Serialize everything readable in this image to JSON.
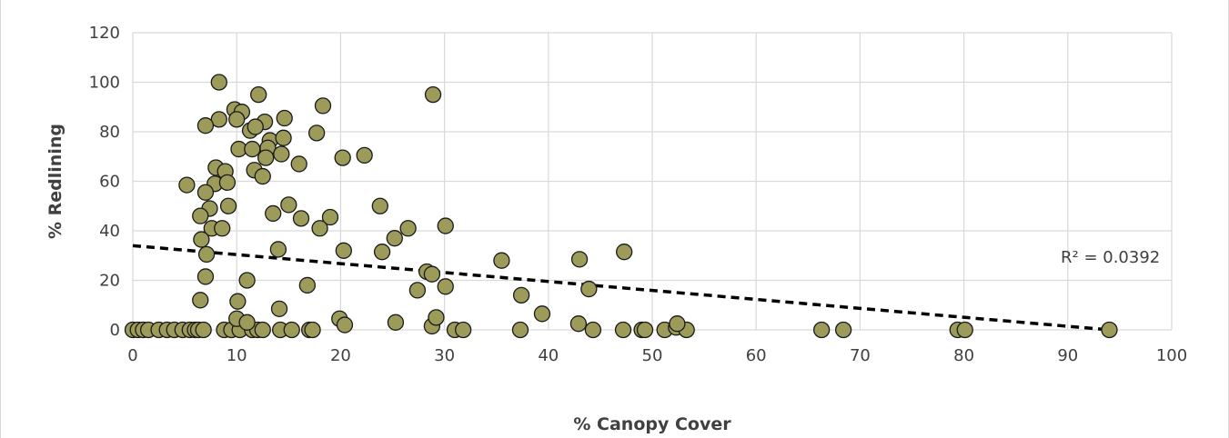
{
  "chart_data": {
    "type": "scatter",
    "title": "",
    "xlabel": "% Canopy Cover",
    "ylabel": "% Redlining",
    "xlim": [
      0,
      100
    ],
    "ylim": [
      0,
      120
    ],
    "xticks": [
      "0",
      "10",
      "20",
      "30",
      "40",
      "50",
      "60",
      "70",
      "80",
      "90",
      "100"
    ],
    "yticks": [
      "0",
      "20",
      "40",
      "60",
      "80",
      "100",
      "120"
    ],
    "grid": true,
    "marker_color": "#9c9b5a",
    "marker_edge": "#1a1a1a",
    "trendline": {
      "style": "dashed",
      "color": "#000000",
      "x": [
        0,
        94
      ],
      "y": [
        34,
        0
      ]
    },
    "r_squared_label": "R² = 0.0392",
    "points": [
      [
        0,
        0
      ],
      [
        0.5,
        0
      ],
      [
        1,
        0
      ],
      [
        1.5,
        0
      ],
      [
        2.5,
        0
      ],
      [
        3.3,
        0
      ],
      [
        4,
        0
      ],
      [
        4.8,
        0
      ],
      [
        5.5,
        0
      ],
      [
        6,
        0
      ],
      [
        6.3,
        0
      ],
      [
        6.8,
        0
      ],
      [
        8.8,
        0
      ],
      [
        9.5,
        0
      ],
      [
        10.3,
        0
      ],
      [
        11.5,
        0
      ],
      [
        12,
        0
      ],
      [
        12.5,
        0
      ],
      [
        14.2,
        0
      ],
      [
        15.3,
        0
      ],
      [
        17,
        0
      ],
      [
        17.3,
        0
      ],
      [
        28.8,
        1.5
      ],
      [
        31,
        0
      ],
      [
        31.8,
        0
      ],
      [
        37.3,
        0
      ],
      [
        44.3,
        0
      ],
      [
        47.2,
        0
      ],
      [
        49,
        0
      ],
      [
        49.3,
        0
      ],
      [
        51.2,
        0
      ],
      [
        52.3,
        1
      ],
      [
        53.3,
        0
      ],
      [
        66.3,
        0
      ],
      [
        68.4,
        0
      ],
      [
        79.4,
        0
      ],
      [
        80.1,
        0
      ],
      [
        94,
        0
      ],
      [
        8.3,
        100
      ],
      [
        12.1,
        95
      ],
      [
        28.9,
        95
      ],
      [
        9.8,
        89
      ],
      [
        10.5,
        88
      ],
      [
        8.3,
        85
      ],
      [
        10,
        85
      ],
      [
        12.7,
        84
      ],
      [
        14.6,
        85.5
      ],
      [
        18.3,
        90.5
      ],
      [
        11.3,
        80.5
      ],
      [
        11.8,
        82
      ],
      [
        13.2,
        76.5
      ],
      [
        14.5,
        77.5
      ],
      [
        17.7,
        79.5
      ],
      [
        7,
        82.5
      ],
      [
        10.2,
        73
      ],
      [
        11.5,
        73
      ],
      [
        13,
        73.5
      ],
      [
        12.8,
        69.5
      ],
      [
        14.3,
        71
      ],
      [
        16,
        67
      ],
      [
        20.2,
        69.5
      ],
      [
        22.3,
        70.5
      ],
      [
        8,
        65.5
      ],
      [
        8.9,
        64
      ],
      [
        11.7,
        64.5
      ],
      [
        12.5,
        62
      ],
      [
        7.9,
        59
      ],
      [
        9.1,
        59.5
      ],
      [
        5.2,
        58.5
      ],
      [
        7,
        55.5
      ],
      [
        15,
        50.5
      ],
      [
        9.2,
        50
      ],
      [
        7.4,
        49
      ],
      [
        23.8,
        50
      ],
      [
        6.5,
        46
      ],
      [
        13.5,
        47
      ],
      [
        16.2,
        45
      ],
      [
        19,
        45.5
      ],
      [
        7.6,
        41
      ],
      [
        8.6,
        41
      ],
      [
        18,
        41
      ],
      [
        26.5,
        41
      ],
      [
        30.1,
        42
      ],
      [
        6.6,
        36.5
      ],
      [
        25.2,
        37
      ],
      [
        14,
        32.5
      ],
      [
        20.3,
        32
      ],
      [
        24,
        31.5
      ],
      [
        47.3,
        31.5
      ],
      [
        7.1,
        30.5
      ],
      [
        35.5,
        28
      ],
      [
        43,
        28.5
      ],
      [
        28.3,
        23.5
      ],
      [
        28.8,
        22.5
      ],
      [
        7,
        21.5
      ],
      [
        11,
        20
      ],
      [
        43.9,
        16.5
      ],
      [
        30.1,
        17.5
      ],
      [
        16.8,
        18
      ],
      [
        27.4,
        16
      ],
      [
        37.4,
        14
      ],
      [
        6.5,
        12
      ],
      [
        10.1,
        11.5
      ],
      [
        14.1,
        8.5
      ],
      [
        39.4,
        6.5
      ],
      [
        29.2,
        5
      ],
      [
        10,
        4.5
      ],
      [
        19.9,
        4.5
      ],
      [
        11,
        3
      ],
      [
        20.4,
        2
      ],
      [
        25.3,
        3
      ],
      [
        42.9,
        2.5
      ],
      [
        52.4,
        2.5
      ]
    ]
  }
}
